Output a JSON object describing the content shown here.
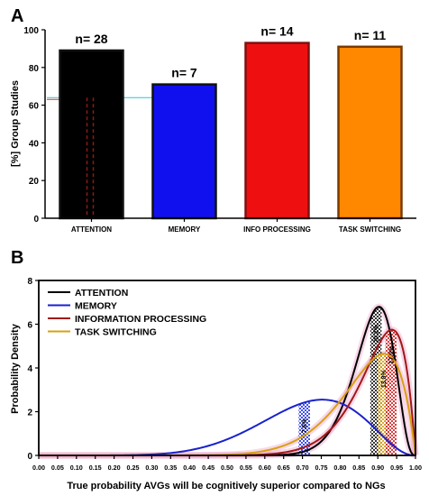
{
  "panels": {
    "a_label": "A",
    "b_label": "B"
  },
  "chart_data": [
    {
      "type": "bar",
      "panel": "A",
      "ylabel": "[%] Group Studies",
      "ylim": [
        0,
        100
      ],
      "yticks": [
        "0",
        "20",
        "40",
        "60",
        "80",
        "100"
      ],
      "categories": [
        "ATTENTION",
        "MEMORY",
        "INFO PROCESSING",
        "TASK SWITCHING"
      ],
      "values": [
        89,
        71,
        93,
        91
      ],
      "bar_labels": [
        "n= 28",
        "n= 7",
        "n= 14",
        "n= 11"
      ],
      "colors": [
        "#000000",
        "#1010ee",
        "#ee1010",
        "#ff8800"
      ],
      "edge_colors": [
        "#111111",
        "#111111",
        "#801010",
        "#7a3b00"
      ],
      "reference_line": {
        "y": 64,
        "colors": [
          "#ff2222",
          "#22cccc"
        ]
      },
      "grid": false
    },
    {
      "type": "line",
      "panel": "B",
      "xlabel": "True probability AVGs will be cognitively superior compared to NGs",
      "ylabel": "Probability Density",
      "xlim": [
        0,
        1
      ],
      "ylim": [
        0,
        8
      ],
      "yticks": [
        "0",
        "2",
        "4",
        "6",
        "8"
      ],
      "xticks": [
        "0.00",
        "0.05",
        "0.10",
        "0.15",
        "0.20",
        "0.25",
        "0.30",
        "0.35",
        "0.40",
        "0.45",
        "0.50",
        "0.55",
        "0.60",
        "0.65",
        "0.70",
        "0.75",
        "0.80",
        "0.85",
        "0.90",
        "0.95",
        "1.00"
      ],
      "legend": "top-left",
      "series": [
        {
          "name": "ATTENTION",
          "color": "#000000",
          "beta": [
            29,
            4
          ],
          "mode": 0.9,
          "peak": 6.8
        },
        {
          "name": "MEMORY",
          "color": "#1a22cc",
          "beta": [
            8,
            3.3
          ],
          "mode": 0.71,
          "peak": 2.55
        },
        {
          "name": "INFORMATION PROCESSING",
          "color": "#a01818",
          "beta": [
            16,
            2
          ],
          "mode": 0.94,
          "peak": 5.75
        },
        {
          "name": "TASK SWITCHING",
          "color": "#d8a010",
          "beta": [
            12,
            2
          ],
          "mode": 0.92,
          "peak": 4.65
        }
      ],
      "intervals": [
        {
          "series": "MEMORY",
          "from": 0.69,
          "to": 0.72,
          "label": "7.6%",
          "color": "#2233dd"
        },
        {
          "series": "ATTENTION",
          "from": 0.88,
          "to": 0.91,
          "label": "20.2%",
          "color": "#111111"
        },
        {
          "series": "TASK SWITCHING",
          "from": 0.9,
          "to": 0.93,
          "label": "13.8%",
          "color": "#d8a010"
        },
        {
          "series": "INFORMATION PROCESSING",
          "from": 0.92,
          "to": 0.95,
          "label": "17.0%",
          "color": "#cc2222"
        }
      ],
      "grid": false
    }
  ]
}
